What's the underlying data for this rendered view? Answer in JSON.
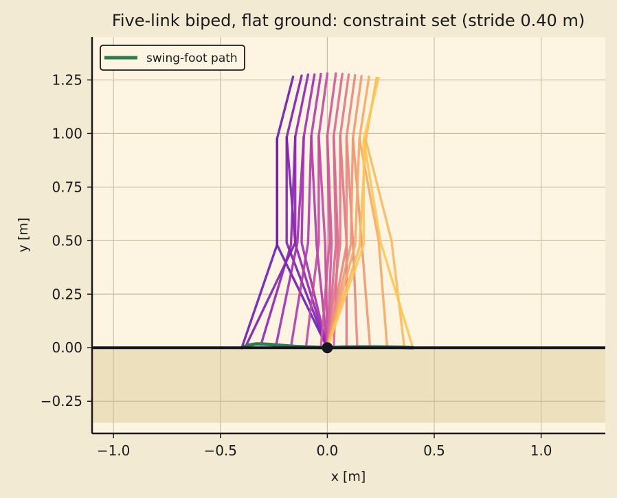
{
  "chart_data": {
    "type": "line",
    "title": "Five-link biped, flat ground: constraint set (stride 0.40 m)",
    "xlabel": "x [m]",
    "ylabel": "y [m]",
    "xlim": [
      -1.1,
      1.3
    ],
    "ylim": [
      -0.4,
      1.45
    ],
    "xticks": [
      -1.0,
      -0.5,
      0.0,
      0.5,
      1.0
    ],
    "xtick_labels": [
      "−1.0",
      "−0.5",
      "0.0",
      "0.5",
      "1.0"
    ],
    "yticks": [
      -0.25,
      0.0,
      0.25,
      0.5,
      0.75,
      1.0,
      1.25
    ],
    "ytick_labels": [
      "−0.25",
      "0.00",
      "0.25",
      "0.50",
      "0.75",
      "1.00",
      "1.25"
    ],
    "grid": true,
    "legend": {
      "position": "top-left",
      "entries": [
        "swing-foot path"
      ]
    },
    "ground": {
      "y": 0.0,
      "fill_bottom": -0.35
    },
    "stance_foot": {
      "x": 0.0,
      "y": 0.0
    },
    "colors": {
      "ground_line": "#14171f",
      "ground_fill": "#ece0bd",
      "plot_bg": "#fdf5e2",
      "page_bg": "#f3ead3",
      "swing_path": "#2e7d4f",
      "stance_marker": "#14171f",
      "grid": "#c9bea0"
    },
    "frames": [
      {
        "hip": [
          -0.235,
          0.975
        ],
        "torso_top": [
          -0.16,
          1.265
        ],
        "swing_knee": [
          -0.235,
          0.48
        ],
        "swing_foot": [
          -0.4,
          0.0
        ],
        "stance_knee": [
          -0.235,
          0.48
        ],
        "color": "#6a1cb5"
      },
      {
        "hip": [
          -0.19,
          0.982
        ],
        "torso_top": [
          -0.12,
          1.27
        ],
        "swing_knee": [
          -0.15,
          0.49
        ],
        "swing_foot": [
          -0.38,
          0.01
        ],
        "stance_knee": [
          -0.19,
          0.49
        ],
        "color": "#7c1fb4"
      },
      {
        "hip": [
          -0.15,
          0.985
        ],
        "torso_top": [
          -0.09,
          1.275
        ],
        "swing_knee": [
          -0.17,
          0.48
        ],
        "swing_foot": [
          -0.31,
          0.015
        ],
        "stance_knee": [
          -0.15,
          0.485
        ],
        "color": "#8e25b3"
      },
      {
        "hip": [
          -0.11,
          0.985
        ],
        "torso_top": [
          -0.06,
          1.275
        ],
        "swing_knee": [
          -0.14,
          0.49
        ],
        "swing_foot": [
          -0.24,
          0.01
        ],
        "stance_knee": [
          -0.12,
          0.49
        ],
        "color": "#a12eb0"
      },
      {
        "hip": [
          -0.075,
          0.987
        ],
        "torso_top": [
          -0.03,
          1.278
        ],
        "swing_knee": [
          -0.09,
          0.49
        ],
        "swing_foot": [
          -0.17,
          0.005
        ],
        "stance_knee": [
          -0.05,
          0.48
        ],
        "color": "#b23aab"
      },
      {
        "hip": [
          -0.04,
          0.988
        ],
        "torso_top": [
          0.0,
          1.28
        ],
        "swing_knee": [
          -0.04,
          0.49
        ],
        "swing_foot": [
          -0.1,
          0.002
        ],
        "stance_knee": [
          -0.01,
          0.48
        ],
        "color": "#c248a3"
      },
      {
        "hip": [
          0.0,
          0.99
        ],
        "torso_top": [
          0.04,
          1.28
        ],
        "swing_knee": [
          0.01,
          0.49
        ],
        "swing_foot": [
          -0.03,
          0.0
        ],
        "stance_knee": [
          0.02,
          0.49
        ],
        "color": "#cf579a"
      },
      {
        "hip": [
          0.03,
          0.988
        ],
        "torso_top": [
          0.07,
          1.278
        ],
        "swing_knee": [
          0.05,
          0.49
        ],
        "swing_foot": [
          0.03,
          0.0
        ],
        "stance_knee": [
          0.04,
          0.48
        ],
        "color": "#d96691"
      },
      {
        "hip": [
          0.06,
          0.987
        ],
        "torso_top": [
          0.1,
          1.275
        ],
        "swing_knee": [
          0.09,
          0.49
        ],
        "swing_foot": [
          0.09,
          0.0
        ],
        "stance_knee": [
          0.06,
          0.48
        ],
        "color": "#e27687"
      },
      {
        "hip": [
          0.09,
          0.984
        ],
        "torso_top": [
          0.13,
          1.272
        ],
        "swing_knee": [
          0.12,
          0.49
        ],
        "swing_foot": [
          0.14,
          0.002
        ],
        "stance_knee": [
          0.09,
          0.48
        ],
        "color": "#e9867d"
      },
      {
        "hip": [
          0.12,
          0.98
        ],
        "torso_top": [
          0.16,
          1.268
        ],
        "swing_knee": [
          0.16,
          0.5
        ],
        "swing_foot": [
          0.2,
          0.002
        ],
        "stance_knee": [
          0.11,
          0.48
        ],
        "color": "#ef9671"
      },
      {
        "hip": [
          0.15,
          0.975
        ],
        "torso_top": [
          0.195,
          1.265
        ],
        "swing_knee": [
          0.24,
          0.5
        ],
        "swing_foot": [
          0.28,
          0.002
        ],
        "stance_knee": [
          0.13,
          0.48
        ],
        "color": "#f5a866"
      },
      {
        "hip": [
          0.18,
          0.97
        ],
        "torso_top": [
          0.23,
          1.26
        ],
        "swing_knee": [
          0.3,
          0.5
        ],
        "swing_foot": [
          0.36,
          0.002
        ],
        "stance_knee": [
          0.15,
          0.47
        ],
        "color": "#f9ba5c"
      },
      {
        "hip": [
          0.17,
          0.97
        ],
        "torso_top": [
          0.24,
          1.26
        ],
        "swing_knee": [
          0.25,
          0.49
        ],
        "swing_foot": [
          0.4,
          0.0
        ],
        "stance_knee": [
          0.17,
          0.48
        ],
        "color": "#fcc653"
      }
    ],
    "swing_path": {
      "x": [
        -0.4,
        -0.37,
        -0.33,
        -0.28,
        -0.22,
        -0.15,
        -0.08,
        0.0,
        0.08,
        0.15,
        0.22,
        0.29,
        0.35,
        0.4
      ],
      "y": [
        0.0,
        0.012,
        0.018,
        0.016,
        0.011,
        0.006,
        0.003,
        0.0,
        0.003,
        0.004,
        0.004,
        0.003,
        0.002,
        0.0
      ]
    }
  }
}
